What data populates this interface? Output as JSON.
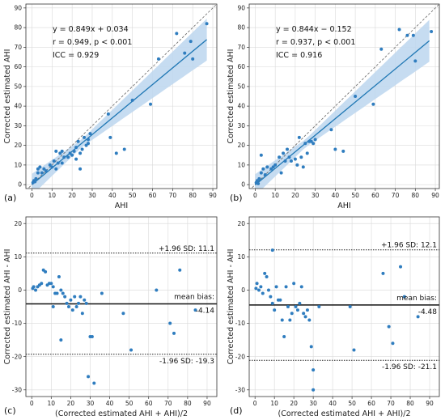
{
  "colors": {
    "point": "#2f7dbf",
    "fit": "#1f77b4",
    "band": "#bcd6ee",
    "identity": "#666666",
    "frame": "#333333",
    "grid": "#d9d9d9"
  },
  "chart_data": [
    {
      "type": "scatter",
      "panel_label": "(a)",
      "xlabel": "AHI",
      "ylabel": "Corrected estimated AHI",
      "xlim": [
        -3,
        92
      ],
      "ylim": [
        -2,
        92
      ],
      "xticks": [
        0,
        10,
        20,
        30,
        40,
        50,
        60,
        70,
        80,
        90
      ],
      "yticks": [
        0,
        10,
        20,
        30,
        40,
        50,
        60,
        70,
        80,
        90
      ],
      "grid": true,
      "identity_line": true,
      "fit": {
        "slope": 0.849,
        "intercept": 0.034
      },
      "annotations": [
        "y = 0.849x + 0.034",
        "r = 0.949, p < 0.001",
        "ICC = 0.929"
      ],
      "points": [
        [
          0.5,
          1
        ],
        [
          1,
          2
        ],
        [
          1.5,
          1.5
        ],
        [
          2,
          3
        ],
        [
          3,
          6
        ],
        [
          3,
          8
        ],
        [
          4,
          9
        ],
        [
          5,
          6
        ],
        [
          6,
          8
        ],
        [
          7,
          7
        ],
        [
          9,
          10
        ],
        [
          10,
          9
        ],
        [
          11,
          12
        ],
        [
          12,
          17
        ],
        [
          12,
          8
        ],
        [
          13,
          11
        ],
        [
          14,
          16
        ],
        [
          15,
          17
        ],
        [
          15,
          11
        ],
        [
          16,
          14
        ],
        [
          18,
          14
        ],
        [
          19,
          16
        ],
        [
          20,
          15
        ],
        [
          21,
          17
        ],
        [
          22,
          19
        ],
        [
          22,
          13
        ],
        [
          23,
          22
        ],
        [
          24,
          8
        ],
        [
          24,
          16
        ],
        [
          25,
          18
        ],
        [
          26,
          24
        ],
        [
          27,
          20
        ],
        [
          28,
          21
        ],
        [
          28,
          23
        ],
        [
          29,
          26
        ],
        [
          38,
          36
        ],
        [
          39,
          24
        ],
        [
          42,
          16
        ],
        [
          46,
          18
        ],
        [
          50,
          43
        ],
        [
          59,
          41
        ],
        [
          63,
          64
        ],
        [
          72,
          77
        ],
        [
          76,
          67
        ],
        [
          79,
          73
        ],
        [
          80,
          64
        ],
        [
          87,
          82
        ]
      ]
    },
    {
      "type": "scatter",
      "panel_label": "(b)",
      "xlabel": "AHI",
      "ylabel": "Corrected estimated AHI",
      "xlim": [
        -3,
        92
      ],
      "ylim": [
        -2,
        92
      ],
      "xticks": [
        0,
        10,
        20,
        30,
        40,
        50,
        60,
        70,
        80,
        90
      ],
      "yticks": [
        0,
        10,
        20,
        30,
        40,
        50,
        60,
        70,
        80,
        90
      ],
      "grid": true,
      "identity_line": true,
      "fit": {
        "slope": 0.844,
        "intercept": -0.152
      },
      "annotations": [
        "y = 0.844x − 0.152",
        "r = 0.937, p < 0.001",
        "ICC = 0.916"
      ],
      "points": [
        [
          0.5,
          1
        ],
        [
          1,
          2
        ],
        [
          1.5,
          0.5
        ],
        [
          2,
          3
        ],
        [
          3,
          15
        ],
        [
          3,
          6
        ],
        [
          4,
          8
        ],
        [
          5,
          5
        ],
        [
          6,
          9
        ],
        [
          8,
          8
        ],
        [
          9,
          9
        ],
        [
          10,
          10
        ],
        [
          12,
          14
        ],
        [
          13,
          6
        ],
        [
          14,
          16
        ],
        [
          15,
          12
        ],
        [
          16,
          18
        ],
        [
          17,
          14
        ],
        [
          18,
          12
        ],
        [
          20,
          13
        ],
        [
          21,
          10
        ],
        [
          22,
          24
        ],
        [
          23,
          14
        ],
        [
          24,
          9
        ],
        [
          25,
          21
        ],
        [
          26,
          16
        ],
        [
          27,
          22
        ],
        [
          28,
          22
        ],
        [
          29,
          21
        ],
        [
          30,
          23
        ],
        [
          38,
          28
        ],
        [
          40,
          18
        ],
        [
          44,
          17
        ],
        [
          50,
          45
        ],
        [
          59,
          41
        ],
        [
          63,
          69
        ],
        [
          72,
          79
        ],
        [
          76,
          76
        ],
        [
          79,
          76
        ],
        [
          80,
          63
        ],
        [
          88,
          78
        ]
      ]
    },
    {
      "type": "scatter",
      "panel_label": "(c)",
      "xlabel": "(Corrected estimated AHI + AHI)/2",
      "ylabel": "Corrected estimated AHI - AHI",
      "xlim": [
        -3,
        95
      ],
      "ylim": [
        -32,
        22
      ],
      "xticks": [
        0,
        10,
        20,
        30,
        40,
        50,
        60,
        70,
        80,
        90
      ],
      "yticks": [
        -30,
        -20,
        -10,
        0,
        10,
        20
      ],
      "grid": true,
      "mean_bias": -4.14,
      "upper_loa": 11.1,
      "lower_loa": -19.3,
      "labels": {
        "upper": "+1.96 SD: 11.1",
        "mean_title": "mean bias:",
        "mean_value": "-4.14",
        "lower": "-1.96 SD: -19.3"
      },
      "points": [
        [
          0.5,
          0.5
        ],
        [
          1,
          1
        ],
        [
          2,
          0
        ],
        [
          3,
          1
        ],
        [
          4,
          1.5
        ],
        [
          5,
          2
        ],
        [
          6,
          6
        ],
        [
          7,
          5.5
        ],
        [
          8,
          1.5
        ],
        [
          9,
          2
        ],
        [
          10,
          2
        ],
        [
          11,
          1
        ],
        [
          11,
          -5
        ],
        [
          12,
          -1
        ],
        [
          13,
          -1
        ],
        [
          14,
          4
        ],
        [
          15,
          0
        ],
        [
          15,
          -15
        ],
        [
          16,
          -1
        ],
        [
          17,
          -2
        ],
        [
          18,
          -4
        ],
        [
          19,
          -5
        ],
        [
          20,
          -3
        ],
        [
          21,
          -6
        ],
        [
          22,
          -2
        ],
        [
          23,
          -5
        ],
        [
          24,
          -4
        ],
        [
          25,
          -2
        ],
        [
          26,
          -7
        ],
        [
          27,
          -3
        ],
        [
          28,
          -4
        ],
        [
          29,
          -26
        ],
        [
          30,
          -14
        ],
        [
          31,
          -14
        ],
        [
          32,
          -28
        ],
        [
          36,
          -1
        ],
        [
          47,
          -7
        ],
        [
          51,
          -18
        ],
        [
          64,
          0
        ],
        [
          71,
          -10
        ],
        [
          73,
          -13
        ],
        [
          76,
          6
        ],
        [
          84,
          -6
        ]
      ]
    },
    {
      "type": "scatter",
      "panel_label": "(d)",
      "xlabel": "(Corrected estimated AHI + AHI)/2",
      "ylabel": "Corrected estimated AHI - AHI",
      "xlim": [
        -3,
        95
      ],
      "ylim": [
        -32,
        22
      ],
      "xticks": [
        0,
        10,
        20,
        30,
        40,
        50,
        60,
        70,
        80,
        90
      ],
      "yticks": [
        -30,
        -20,
        -10,
        0,
        10,
        20
      ],
      "grid": true,
      "mean_bias": -4.48,
      "upper_loa": 12.1,
      "lower_loa": -21.1,
      "labels": {
        "upper": "+1.96 SD: 12.1",
        "mean_title": "mean bias:",
        "mean_value": "-4.48",
        "lower": "-1.96 SD: -21.1"
      },
      "points": [
        [
          0.5,
          0.5
        ],
        [
          1,
          2
        ],
        [
          2,
          0
        ],
        [
          3,
          1
        ],
        [
          4,
          -1
        ],
        [
          5,
          5
        ],
        [
          6,
          4
        ],
        [
          7,
          0
        ],
        [
          8,
          -2
        ],
        [
          9,
          12
        ],
        [
          9,
          -4
        ],
        [
          10,
          -6
        ],
        [
          11,
          1
        ],
        [
          12,
          -3
        ],
        [
          13,
          -3
        ],
        [
          14,
          -9
        ],
        [
          15,
          -14
        ],
        [
          16,
          1
        ],
        [
          17,
          -5
        ],
        [
          18,
          -9
        ],
        [
          19,
          -7
        ],
        [
          20,
          2
        ],
        [
          21,
          -5
        ],
        [
          22,
          -6
        ],
        [
          23,
          -4
        ],
        [
          24,
          1
        ],
        [
          25,
          -7
        ],
        [
          26,
          -8
        ],
        [
          27,
          -6
        ],
        [
          28,
          -9
        ],
        [
          29,
          -17
        ],
        [
          30,
          -30
        ],
        [
          30,
          -24
        ],
        [
          33,
          -5
        ],
        [
          49,
          -5
        ],
        [
          51,
          -18
        ],
        [
          66,
          5
        ],
        [
          69,
          -11
        ],
        [
          71,
          -16
        ],
        [
          75,
          7
        ],
        [
          77,
          -2
        ],
        [
          84,
          -8
        ]
      ]
    }
  ]
}
